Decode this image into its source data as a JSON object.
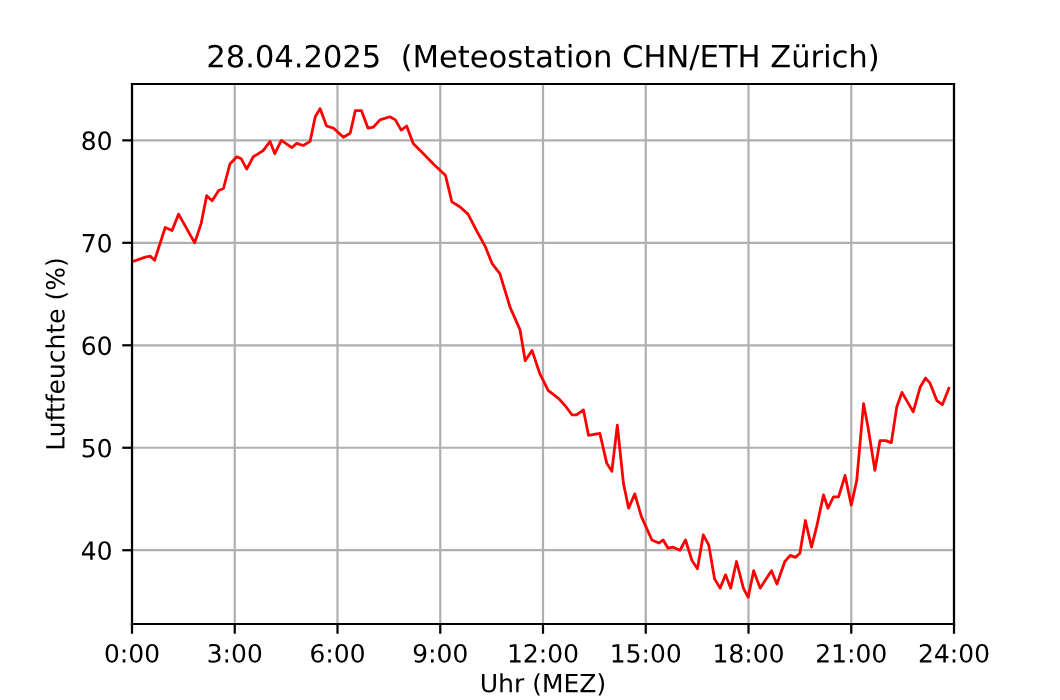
{
  "chart_data": {
    "type": "line",
    "title": "28.04.2025  (Meteostation CHN/ETH Zürich)",
    "xlabel": "Uhr (MEZ)",
    "ylabel": "Luftfeuchte (%)",
    "x": [
      0.04,
      0.39,
      0.53,
      0.66,
      0.97,
      1.17,
      1.36,
      1.83,
      2.02,
      2.18,
      2.34,
      2.53,
      2.67,
      2.86,
      3.06,
      3.19,
      3.35,
      3.54,
      3.83,
      4.03,
      4.17,
      4.36,
      4.67,
      4.81,
      5.0,
      5.2,
      5.35,
      5.49,
      5.68,
      5.88,
      6.17,
      6.37,
      6.52,
      6.7,
      6.89,
      7.05,
      7.24,
      7.53,
      7.69,
      7.86,
      8.02,
      8.21,
      8.51,
      8.8,
      9.15,
      9.34,
      9.58,
      9.81,
      10.06,
      10.32,
      10.51,
      10.74,
      11.04,
      11.33,
      11.48,
      11.68,
      11.91,
      12.15,
      12.46,
      12.65,
      12.85,
      12.98,
      13.18,
      13.33,
      13.66,
      13.86,
      14.01,
      14.17,
      14.35,
      14.5,
      14.68,
      14.87,
      15.18,
      15.38,
      15.51,
      15.65,
      15.8,
      16.0,
      16.16,
      16.35,
      16.51,
      16.68,
      16.84,
      17.01,
      17.17,
      17.33,
      17.48,
      17.65,
      17.85,
      17.99,
      18.15,
      18.34,
      18.67,
      18.83,
      19.06,
      19.22,
      19.37,
      19.5,
      19.66,
      19.84,
      19.99,
      20.19,
      20.32,
      20.48,
      20.63,
      20.82,
      21.0,
      21.16,
      21.36,
      21.49,
      21.69,
      21.84,
      22.0,
      22.17,
      22.33,
      22.48,
      22.62,
      22.81,
      23.01,
      23.17,
      23.3,
      23.5,
      23.66,
      23.85
    ],
    "series": [
      {
        "color": "#ff0000",
        "values": [
          68.2,
          68.6,
          68.7,
          68.3,
          71.5,
          71.2,
          72.8,
          70.0,
          71.9,
          74.6,
          74.1,
          75.1,
          75.3,
          77.7,
          78.4,
          78.2,
          77.2,
          78.4,
          79.0,
          79.9,
          78.7,
          80.0,
          79.3,
          79.7,
          79.5,
          79.9,
          82.3,
          83.1,
          81.4,
          81.2,
          80.3,
          80.7,
          82.9,
          82.9,
          81.2,
          81.3,
          82.0,
          82.3,
          82.0,
          81.0,
          81.4,
          79.7,
          78.7,
          77.7,
          76.6,
          74.0,
          73.5,
          72.8,
          71.2,
          69.6,
          68.0,
          67.0,
          63.7,
          61.5,
          58.5,
          59.5,
          57.2,
          55.6,
          54.8,
          54.1,
          53.2,
          53.2,
          53.7,
          51.2,
          51.4,
          48.5,
          47.7,
          52.2,
          46.5,
          44.1,
          45.5,
          43.3,
          41.0,
          40.7,
          41.0,
          40.2,
          40.3,
          40.0,
          41.0,
          39.0,
          38.2,
          41.5,
          40.5,
          37.2,
          36.3,
          37.6,
          36.3,
          38.9,
          36.3,
          35.4,
          38.0,
          36.3,
          38.0,
          36.7,
          38.9,
          39.5,
          39.3,
          39.7,
          42.9,
          40.3,
          42.3,
          45.4,
          44.1,
          45.2,
          45.2,
          47.3,
          44.4,
          46.8,
          54.3,
          52.0,
          47.8,
          50.7,
          50.7,
          50.5,
          54.0,
          55.4,
          54.6,
          53.5,
          55.9,
          56.8,
          56.3,
          54.6,
          54.2,
          55.8
        ]
      }
    ],
    "xlim": [
      0,
      24
    ],
    "xticks": [
      {
        "value": 0,
        "label": "0:00"
      },
      {
        "value": 3,
        "label": "3:00"
      },
      {
        "value": 6,
        "label": "6:00"
      },
      {
        "value": 9,
        "label": "9:00"
      },
      {
        "value": 12,
        "label": "12:00"
      },
      {
        "value": 15,
        "label": "15:00"
      },
      {
        "value": 18,
        "label": "18:00"
      },
      {
        "value": 21,
        "label": "21:00"
      },
      {
        "value": 24,
        "label": "24:00"
      }
    ],
    "ylim": [
      32.8,
      85.5
    ],
    "yticks": [
      40,
      50,
      60,
      70,
      80
    ],
    "grid": true
  }
}
